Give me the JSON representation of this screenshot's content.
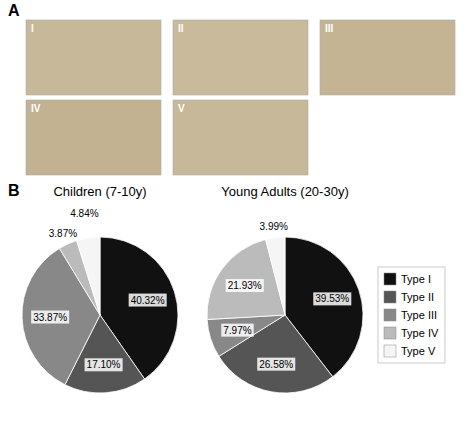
{
  "chart_data": [
    {
      "type": "grid",
      "annotations": [
        "A"
      ],
      "categories": [
        "I",
        "II",
        "III",
        "IV",
        "V"
      ],
      "colors": [
        "#c8b89a",
        "#c9ba9b",
        "#c4b494",
        "#c2b292",
        "#c6b898"
      ]
    },
    {
      "type": "pie",
      "title": "Children (7-10y)",
      "annotations": [
        "B"
      ],
      "values": [
        40.32,
        17.1,
        33.87,
        3.87,
        4.84
      ],
      "value_labels": [
        "40.32%",
        "17.10%",
        "33.87%",
        "3.87%",
        "4.84%"
      ],
      "colors": [
        "#111111",
        "#555555",
        "#888888",
        "#bbbbbb",
        "#f5f5f5"
      ],
      "data_labels": true
    },
    {
      "type": "pie",
      "title": "Young Adults (20-30y)",
      "categories": [
        "Type I",
        "Type II",
        "Type III",
        "Type IV",
        "Type V"
      ],
      "values": [
        39.53,
        26.58,
        7.97,
        21.93,
        3.99
      ],
      "value_labels": [
        "39.53%",
        "26.58%",
        "7.97%",
        "21.93%",
        "3.99%"
      ],
      "colors": [
        "#111111",
        "#555555",
        "#888888",
        "#bbbbbb",
        "#f5f5f5"
      ],
      "data_labels": true,
      "legend": "right"
    }
  ]
}
